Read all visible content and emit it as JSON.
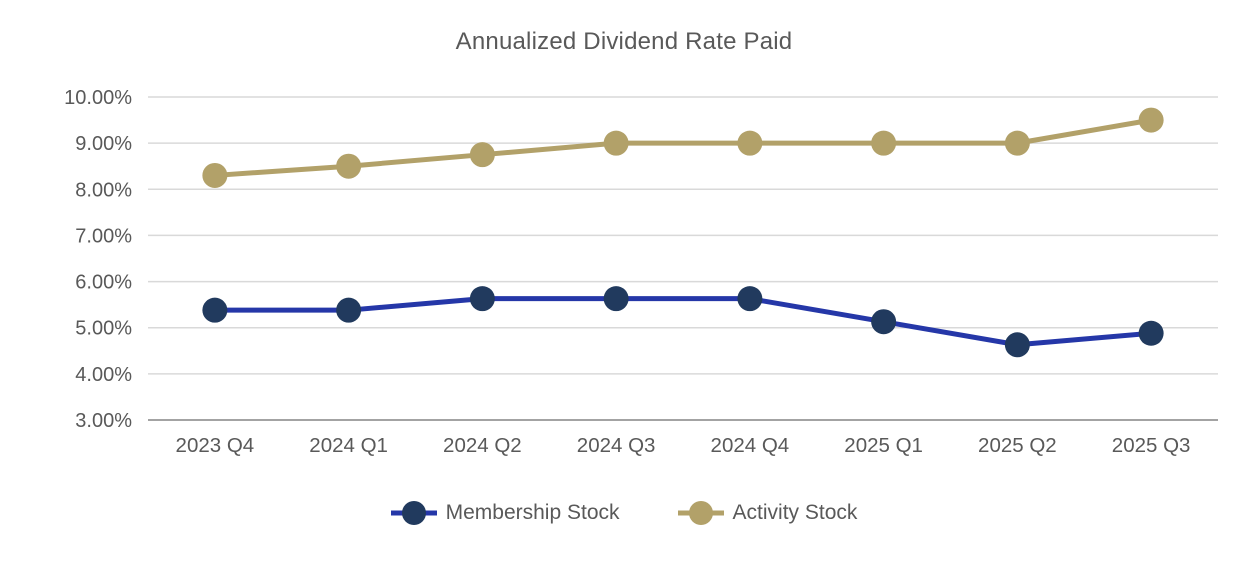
{
  "chart_data": {
    "type": "line",
    "title": "Annualized Dividend Rate Paid",
    "categories": [
      "2023 Q4",
      "2024 Q1",
      "2024 Q2",
      "2024 Q3",
      "2024 Q4",
      "2025 Q1",
      "2025 Q2",
      "2025 Q3"
    ],
    "series": [
      {
        "name": "Membership Stock",
        "values": [
          5.38,
          5.38,
          5.63,
          5.63,
          5.63,
          5.13,
          4.63,
          4.88
        ],
        "line_color": "#2537a8",
        "marker_color": "#213a5e"
      },
      {
        "name": "Activity Stock",
        "values": [
          8.3,
          8.5,
          8.75,
          9.0,
          9.0,
          9.0,
          9.0,
          9.5
        ],
        "line_color": "#b2a169",
        "marker_color": "#b2a169"
      }
    ],
    "ylim": [
      3,
      10
    ],
    "y_ticks": [
      3,
      4,
      5,
      6,
      7,
      8,
      9,
      10
    ],
    "y_tick_format": "N.00%",
    "y_tick_labels": [
      "3.00%",
      "4.00%",
      "5.00%",
      "6.00%",
      "7.00%",
      "8.00%",
      "9.00%",
      "10.00%"
    ],
    "xlabel": "",
    "ylabel": "",
    "grid": true,
    "legend_position": "bottom",
    "colors": {
      "gridline": "#d9d9d9",
      "axis_line": "#a3a3a3",
      "tick_text": "#595959",
      "title_text": "#595959"
    }
  }
}
